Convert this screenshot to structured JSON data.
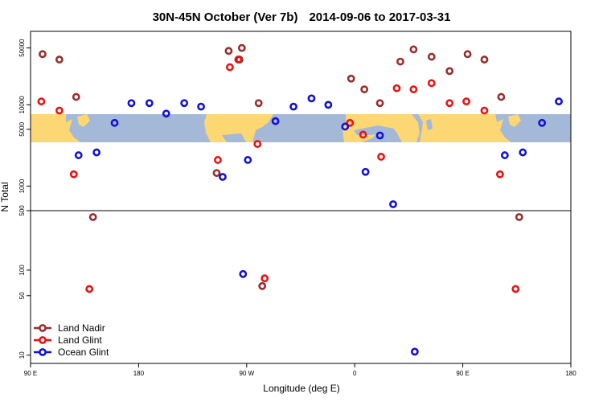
{
  "chart_data": {
    "type": "scatter",
    "title": "30N-45N October (Ver 7b)",
    "date_range": "2014-09-06 to 2017-03-31",
    "xlabel": "Longitude (deg E)",
    "ylabel": "N Total",
    "x_ticks": [
      {
        "value": 90,
        "label": "90 E"
      },
      {
        "value": 180,
        "label": "180"
      },
      {
        "value": 270,
        "label": "90 W"
      },
      {
        "value": 360,
        "label": "0"
      },
      {
        "value": 450,
        "label": "90 E"
      },
      {
        "value": 540,
        "label": "180"
      }
    ],
    "xlim": [
      90,
      540
    ],
    "upper_panel": {
      "yscale": "log",
      "ylim": [
        500,
        80000
      ],
      "y_ticks": [
        1000,
        5000,
        10000,
        50000
      ]
    },
    "lower_panel": {
      "yscale": "log",
      "ylim": [
        8,
        500
      ],
      "y_ticks": [
        10,
        50,
        100,
        500
      ]
    },
    "map_band_label": "world map strip (30N-45N)",
    "colors": {
      "land_nadir": "#9b2d2d",
      "land_glint": "#ee1111",
      "ocean_glint": "#1111dd",
      "ocean": "#a4b8d8",
      "land": "#fdd773"
    },
    "series": [
      {
        "name": "Land Nadir",
        "color": "#9b2d2d",
        "points": [
          [
            100,
            42000
          ],
          [
            114,
            36000
          ],
          [
            128,
            12500
          ],
          [
            142,
            420
          ],
          [
            245,
            1450
          ],
          [
            255,
            46000
          ],
          [
            264,
            36000
          ],
          [
            266,
            50000
          ],
          [
            280,
            10500
          ],
          [
            283,
            65
          ],
          [
            357,
            21000
          ],
          [
            368,
            15500
          ],
          [
            381,
            10500
          ],
          [
            398,
            34000
          ],
          [
            409,
            48000
          ],
          [
            424,
            39000
          ],
          [
            439,
            26000
          ],
          [
            454,
            42000
          ],
          [
            468,
            36000
          ],
          [
            482,
            12500
          ],
          [
            497,
            420
          ]
        ]
      },
      {
        "name": "Land Glint",
        "color": "#ee1111",
        "points": [
          [
            99,
            11000
          ],
          [
            114,
            8500
          ],
          [
            126,
            1400
          ],
          [
            139,
            60
          ],
          [
            246,
            2100
          ],
          [
            256,
            29000
          ],
          [
            263,
            36000
          ],
          [
            279,
            3300
          ],
          [
            285,
            80
          ],
          [
            356,
            6000
          ],
          [
            367,
            4300
          ],
          [
            382,
            2300
          ],
          [
            395,
            16000
          ],
          [
            409,
            15500
          ],
          [
            424,
            18500
          ],
          [
            439,
            10500
          ],
          [
            453,
            11000
          ],
          [
            468,
            8500
          ],
          [
            481,
            1400
          ],
          [
            494,
            60
          ]
        ]
      },
      {
        "name": "Ocean Glint",
        "color": "#1111dd",
        "points": [
          [
            130,
            2400
          ],
          [
            145,
            2600
          ],
          [
            160,
            6000
          ],
          [
            174,
            10500
          ],
          [
            189,
            10500
          ],
          [
            203,
            7800
          ],
          [
            218,
            10500
          ],
          [
            232,
            9500
          ],
          [
            250,
            1300
          ],
          [
            267,
            90
          ],
          [
            271,
            2100
          ],
          [
            294,
            6300
          ],
          [
            309,
            9500
          ],
          [
            324,
            12000
          ],
          [
            338,
            10000
          ],
          [
            352,
            5400
          ],
          [
            369,
            1500
          ],
          [
            381,
            4200
          ],
          [
            392,
            600
          ],
          [
            410,
            11
          ],
          [
            485,
            2400
          ],
          [
            500,
            2600
          ],
          [
            516,
            6000
          ],
          [
            530,
            11000
          ]
        ]
      }
    ],
    "legend": {
      "position": "bottom-left",
      "entries": [
        "Land Nadir",
        "Land Glint",
        "Ocean Glint"
      ]
    }
  }
}
